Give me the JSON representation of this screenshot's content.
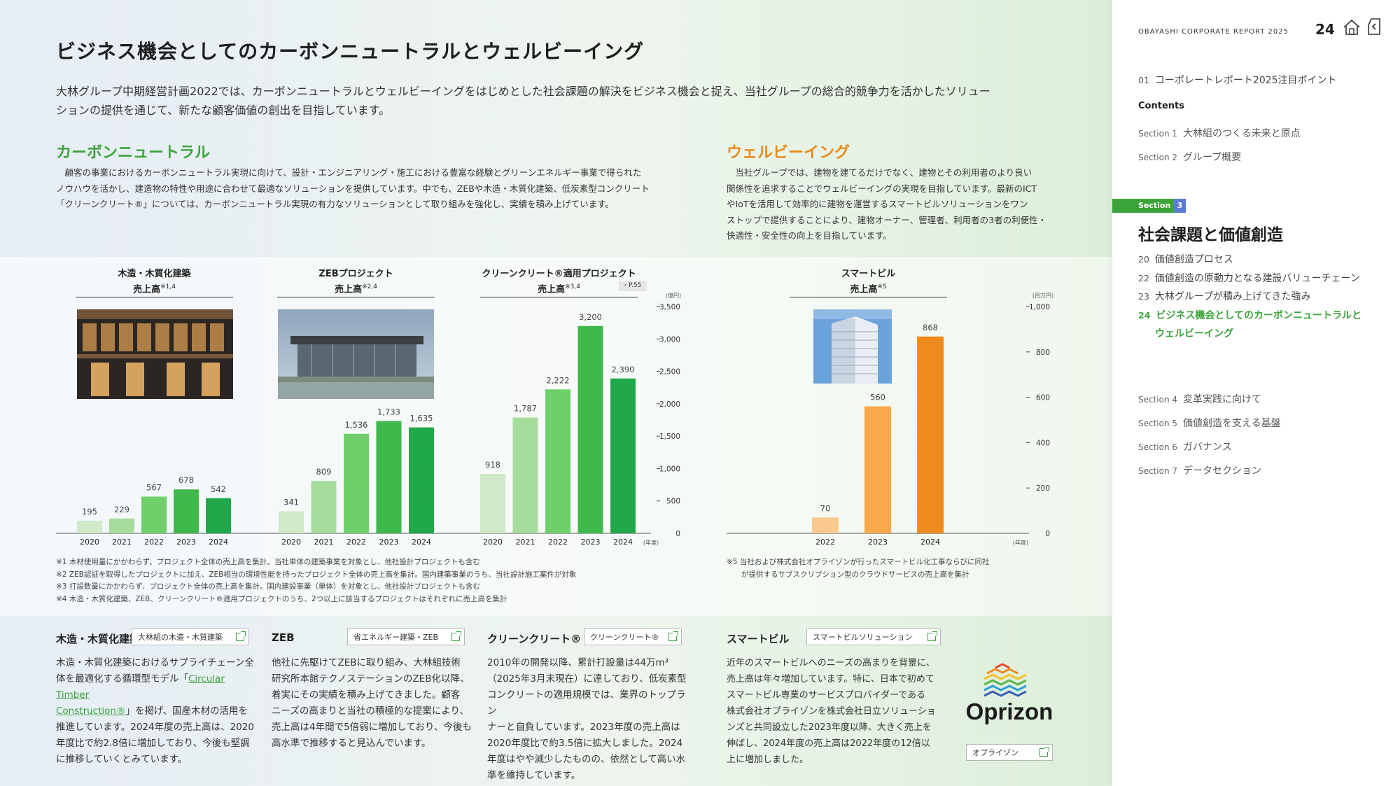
{
  "page": {
    "title": "ビジネス機会としてのカーボンニュートラルとウェルビーイング",
    "lead_1": "大林グループ中期経営計画2022では、カーボンニュートラルとウェルビーイングをはじめとした社会課題の解決をビジネス機会と捉え、当社グループの総合的競争力を活かしたソリュー",
    "lead_2": "ションの提供を通じて、新たな顧客価値の創出を目指しています。"
  },
  "carbon": {
    "heading": "カーボンニュートラル",
    "lines": [
      "　顧客の事業におけるカーボンニュートラル実現に向けて、設計・エンジニアリング・施工における豊富な経験とグリーンエネルギー事業で得られた",
      "ノウハウを活かし、建造物の特性や用途に合わせて最適なソリューションを提供しています。中でも、ZEBや木造・木質化建築、低炭素型コンクリート",
      "「クリーンクリート®」については、カーボンニュートラル実現の有力なソリューションとして取り組みを強化し、実績を積み上げています。"
    ]
  },
  "wellbeing": {
    "heading": "ウェルビーイング",
    "lines": [
      "　当社グループでは、建物を建てるだけでなく、建物とその利用者のより良い",
      "関係性を追求することでウェルビーイングの実現を目指しています。最新のICT",
      "やIoTを活用して効率的に建物を運営するスマートビルソリューションをワン",
      "ストップで提供することにより、建物オーナー、管理者、利用者の3者の利便性・",
      "快適性・安全性の向上を目指しています。"
    ]
  },
  "chart_data": [
    {
      "type": "bar",
      "title": "木造・木質化建築 売上高※1,4",
      "categories": [
        "2020",
        "2021",
        "2022",
        "2023",
        "2024"
      ],
      "values": [
        195,
        229,
        567,
        678,
        542
      ],
      "ylim": [
        0,
        3500
      ],
      "colors": [
        "#cfe9c9",
        "#a6dc9c",
        "#6fcf6a",
        "#3fb84c",
        "#21a84a"
      ]
    },
    {
      "type": "bar",
      "title": "ZEBプロジェクト 売上高※2,4",
      "categories": [
        "2020",
        "2021",
        "2022",
        "2023",
        "2024"
      ],
      "values": [
        341,
        809,
        1536,
        1733,
        1635
      ],
      "ylim": [
        0,
        3500
      ],
      "colors": [
        "#cfe9c9",
        "#a6dc9c",
        "#6fcf6a",
        "#3fb84c",
        "#21a84a"
      ]
    },
    {
      "type": "bar",
      "title": "クリーンクリート®適用プロジェクト 売上高※3,4",
      "categories": [
        "2020",
        "2021",
        "2022",
        "2023",
        "2024"
      ],
      "values": [
        918,
        1787,
        2222,
        3200,
        2390
      ],
      "ylim": [
        0,
        3500
      ],
      "ylabel": "(億円)",
      "xlabel": "(年度)",
      "yticks": [
        "0",
        "500",
        "1,000",
        "1,500",
        "2,000",
        "2,500",
        "3,000",
        "3,500"
      ],
      "colors": [
        "#cfe9c9",
        "#a6dc9c",
        "#6fcf6a",
        "#3fb84c",
        "#21a84a"
      ]
    },
    {
      "type": "bar",
      "title": "スマートビル 売上高※5",
      "categories": [
        "2022",
        "2023",
        "2024"
      ],
      "values": [
        70,
        560,
        868
      ],
      "ylim": [
        0,
        1000
      ],
      "ylabel": "(百万円)",
      "xlabel": "(年度)",
      "yticks": [
        "0",
        "200",
        "400",
        "600",
        "800",
        "1,000"
      ],
      "colors": [
        "#f9c98d",
        "#f8a94a",
        "#f18a1c"
      ]
    }
  ],
  "charts": {
    "c1_title_1": "木造・木質化建築",
    "c1_title_2": "売上高",
    "c1_note_ref": "※1,4",
    "c2_title_1": "ZEBプロジェクト",
    "c2_title_2": "売上高",
    "c2_note_ref": "※2,4",
    "c3_title_1": "クリーンクリート®適用プロジェクト",
    "c3_title_2": "売上高",
    "c3_note_ref": "※3,4",
    "c3_pagelink": "P.55",
    "c4_title_1": "スマートビル",
    "c4_title_2": "売上高",
    "c4_note_ref": "※5"
  },
  "notes": {
    "n1": "※1 木材使用量にかかわらず、プロジェクト全体の売上高を集計。当社単体の建築事業を対象とし、他社設計プロジェクトも含む",
    "n2": "※2 ZEB認証を取得したプロジェクトに加え、ZEB相当の環境性能を持ったプロジェクト全体の売上高を集計。国内建築事業のうち、当社設計施工案件が対象",
    "n3": "※3 打設数量にかかわらず、プロジェクト全体の売上高を集計。国内建設事業（単体）を対象とし、他社設計プロジェクトも含む",
    "n4": "※4 木造・木質化建築、ZEB、クリーンクリート®適用プロジェクトのうち、2つ以上に該当するプロジェクトはそれぞれに売上高を集計",
    "n5a": "※5 当社および株式会社オプライゾンが行ったスマートビル化工事ならびに同社",
    "n5b": "が提供するサブスクリプション型のクラウドサービスの売上高を集計"
  },
  "cards": {
    "wood": {
      "title": "木造・木質化建築",
      "link": "大林組の木造・木質建築",
      "lines": [
        "木造・木質化建築におけるサプライチェーン全",
        "体を最適化する循環型モデル「",
        "Circular Timber",
        "Construction®",
        "」を掲げ、国産木材の活用を",
        "推進しています。2024年度の売上高は、2020",
        "年度比で約2.8倍に増加しており、今後も堅調",
        "に推移していくとみています。"
      ]
    },
    "zeb": {
      "title": "ZEB",
      "link": "省エネルギー建築・ZEB",
      "lines": [
        "他社に先駆けてZEBに取り組み、大林組技術",
        "研究所本館テクノステーションのZEB化以降、",
        "着実にその実績を積み上げてきました。顧客",
        "ニーズの高まりと当社の積極的な提案により、",
        "売上高は4年間で5倍弱に増加しており、今後も",
        "高水準で推移すると見込んでいます。"
      ]
    },
    "clean": {
      "title": "クリーンクリート®",
      "link": "クリーンクリート®",
      "lines": [
        "2010年の開発以降、累計打設量は44万m³",
        "（2025年3月末現在）に達しており、低炭素型",
        "コンクリートの適用規模では、業界のトップラン",
        "ナーと自負しています。2023年度の売上高は",
        "2020年度比で約3.5倍に拡大しました。2024",
        "年度はやや減少したものの、依然として高い水",
        "準を維持しています。"
      ]
    },
    "smart": {
      "title": "スマートビル",
      "link": "スマートビルソリューション",
      "lines": [
        "近年のスマートビルへのニーズの高まりを背景に、",
        "売上高は年々増加しています。特に、日本で初めて",
        "スマートビル専業のサービスプロバイダーである",
        "株式会社オプライゾンを株式会社日立ソリューショ",
        "ンズと共同設立した2023年度以降、大きく売上を",
        "伸ばし、2024年度の売上高は2022年度の12倍以",
        "上に増加しました。"
      ],
      "logo_text": "Oprizon",
      "logo_link": "オプライゾン"
    }
  },
  "sidebar": {
    "header": "OBAYASHI CORPORATE REPORT 2025",
    "page_number": "24",
    "item_01_num": "01",
    "item_01": "コーポレートレポート2025注目ポイント",
    "contents": "Contents",
    "s1_lab": "Section 1",
    "s1": "大林組のつくる未来と原点",
    "s2_lab": "Section 2",
    "s2": "グループ概要",
    "s3_badge": "Section",
    "s3_num": "3",
    "s3_title": "社会課題と価値創造",
    "i20_num": "20",
    "i20": "価値創造プロセス",
    "i22_num": "22",
    "i22": "価値創造の原動力となる建設バリューチェーン",
    "i23_num": "23",
    "i23": "大林グループが積み上げてきた強み",
    "i24_num": "24",
    "i24a": "ビジネス機会としてのカーボンニュートラルと",
    "i24b": "ウェルビーイング",
    "s4_lab": "Section 4",
    "s4": "変革実践に向けて",
    "s5_lab": "Section 5",
    "s5": "価値創造を支える基盤",
    "s6_lab": "Section 6",
    "s6": "ガバナンス",
    "s7_lab": "Section 7",
    "s7": "データセクション",
    "accent": "#3aa43a",
    "badge_num_color": "#5b7bd6"
  }
}
